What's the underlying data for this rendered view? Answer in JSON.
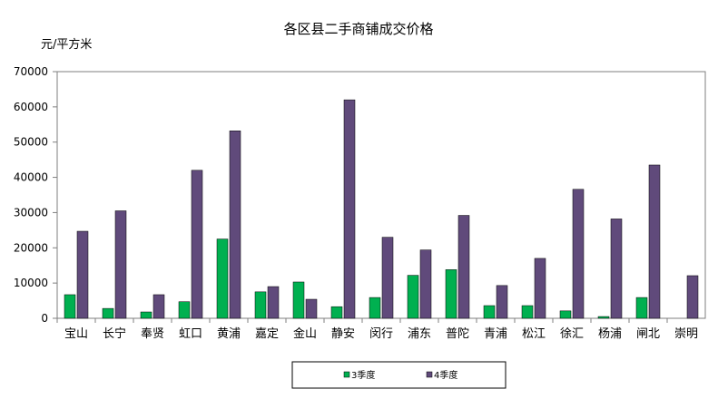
{
  "chart_data": {
    "type": "bar",
    "title": "各区县二手商铺成交价格",
    "ylabel": "元/平方米",
    "xlabel": "",
    "ylim": [
      0,
      70000
    ],
    "yticks": [
      0,
      10000,
      20000,
      30000,
      40000,
      50000,
      60000,
      70000
    ],
    "grid": false,
    "legend_position": "bottom-center",
    "categories": [
      "宝山",
      "长宁",
      "奉贤",
      "虹口",
      "黄浦",
      "嘉定",
      "金山",
      "静安",
      "闵行",
      "浦东",
      "普陀",
      "青浦",
      "松江",
      "徐汇",
      "杨浦",
      "闸北",
      "崇明"
    ],
    "series": [
      {
        "name": "3季度",
        "color": "#00b050",
        "values": [
          6700,
          2800,
          1800,
          4700,
          22500,
          7500,
          10300,
          3300,
          5900,
          12200,
          13800,
          3600,
          3600,
          2100,
          500,
          5900,
          0
        ]
      },
      {
        "name": "4季度",
        "color": "#604a7b",
        "values": [
          24700,
          30500,
          6700,
          42000,
          53200,
          9000,
          5400,
          62000,
          23000,
          19400,
          29200,
          9300,
          17000,
          36600,
          28200,
          43500,
          12100
        ]
      }
    ]
  }
}
